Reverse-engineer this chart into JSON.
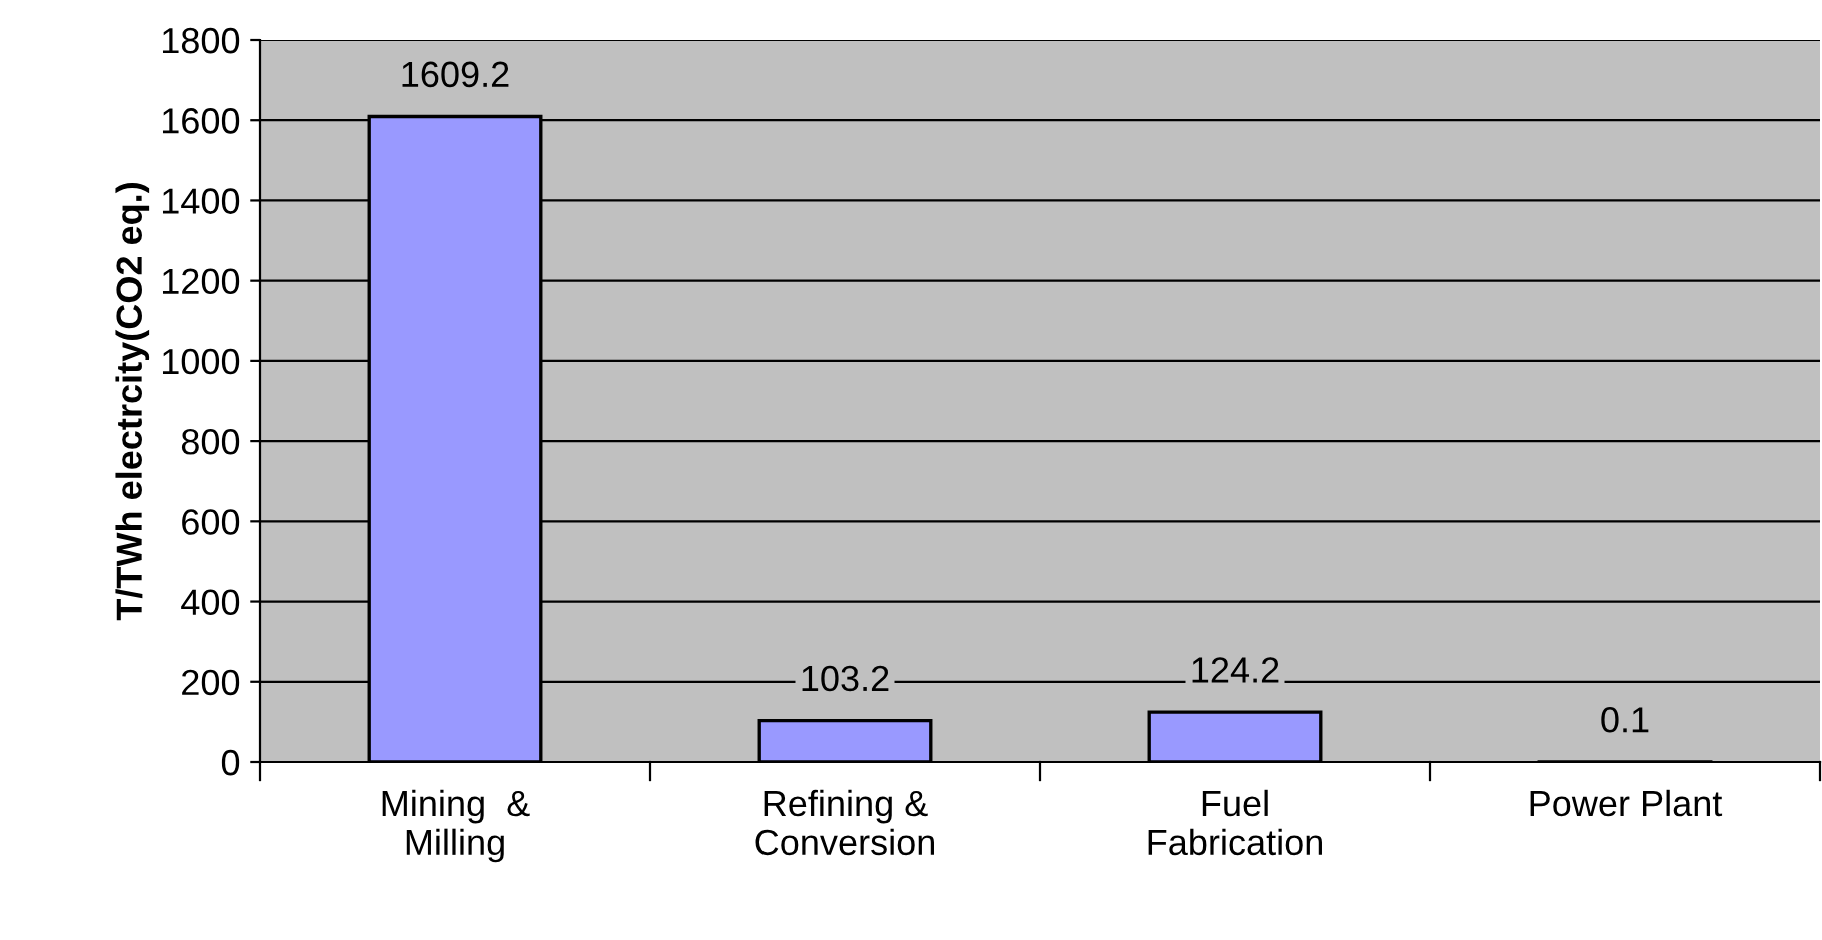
{
  "chart_data": {
    "type": "bar",
    "ylabel": "T/TWh electrcity(CO2 eq.)",
    "categories": [
      "Mining  &\nMilling",
      "Refining &\nConversion",
      "Fuel\nFabrication",
      "Power Plant"
    ],
    "values": [
      1609.2,
      103.2,
      124.2,
      0.1
    ],
    "color": "#9999ff",
    "ylim": [
      0,
      1800
    ],
    "yticks": [
      0,
      200,
      400,
      600,
      800,
      1000,
      1200,
      1400,
      1600,
      1800
    ],
    "grid": "y",
    "data_labels": true
  }
}
